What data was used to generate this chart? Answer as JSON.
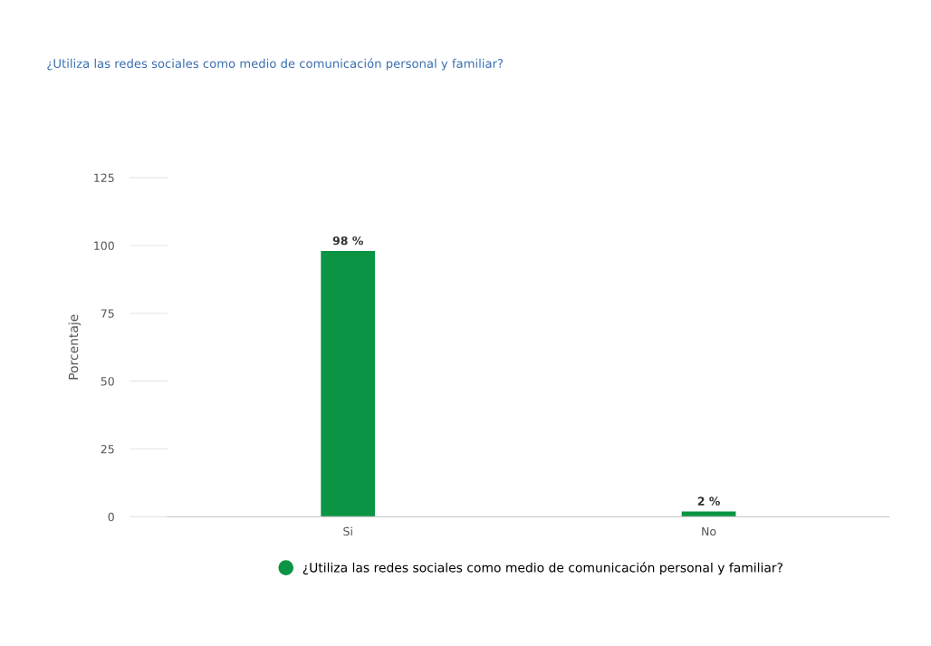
{
  "chart_data": {
    "type": "bar",
    "title": "¿Utiliza las redes sociales como medio de comunicación personal y familiar?",
    "ylabel": "Porcentaje",
    "categories": [
      "Si",
      "No"
    ],
    "series": [
      {
        "name": "¿Utiliza las redes sociales como medio de comunicación personal y familiar?",
        "color": "#0b9444",
        "values": [
          98,
          2
        ],
        "value_labels": [
          "98 %",
          "2 %"
        ]
      }
    ],
    "ylim": [
      0,
      125
    ],
    "yticks": [
      0,
      25,
      50,
      75,
      100,
      125
    ],
    "legend": "bottom",
    "grid": false
  }
}
